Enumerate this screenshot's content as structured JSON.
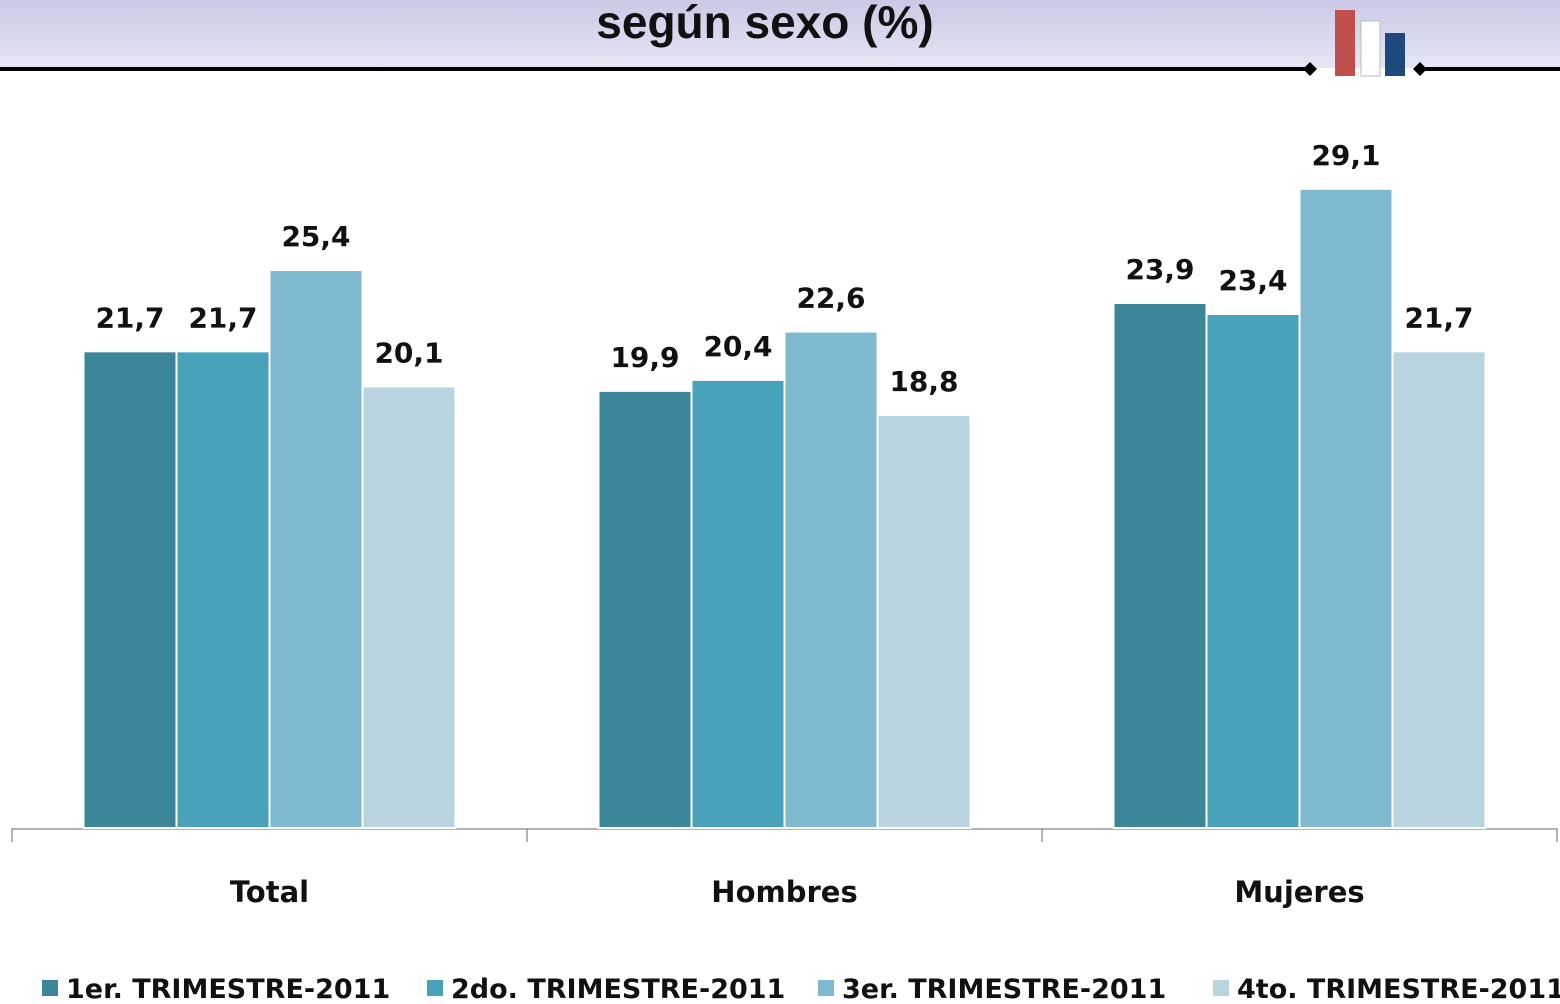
{
  "chart_data": {
    "type": "bar",
    "title": "según sexo (%)",
    "categories": [
      "Total",
      "Hombres",
      "Mujeres"
    ],
    "ylim": [
      0,
      30
    ],
    "series": [
      {
        "name": "1er. TRIMESTRE-2011",
        "color": "#3b8799",
        "values": [
          21.7,
          19.9,
          23.9
        ],
        "value_labels": [
          "21,7",
          "19,9",
          "23,9"
        ]
      },
      {
        "name": "2do. TRIMESTRE-2011",
        "color": "#48a2ba",
        "values": [
          21.7,
          20.4,
          23.4
        ],
        "value_labels": [
          "21,7",
          "20,4",
          "23,4"
        ]
      },
      {
        "name": "3er. TRIMESTRE-2011",
        "color": "#7fb9cf",
        "values": [
          25.4,
          22.6,
          29.1
        ],
        "value_labels": [
          "25,4",
          "22,6",
          "29,1"
        ]
      },
      {
        "name": "4to. TRIMESTRE-2011",
        "color": "#b7d4e0",
        "values": [
          20.1,
          18.8,
          21.7
        ],
        "value_labels": [
          "20,1",
          "18,8",
          "21,7"
        ]
      }
    ],
    "legend": "bottom"
  }
}
